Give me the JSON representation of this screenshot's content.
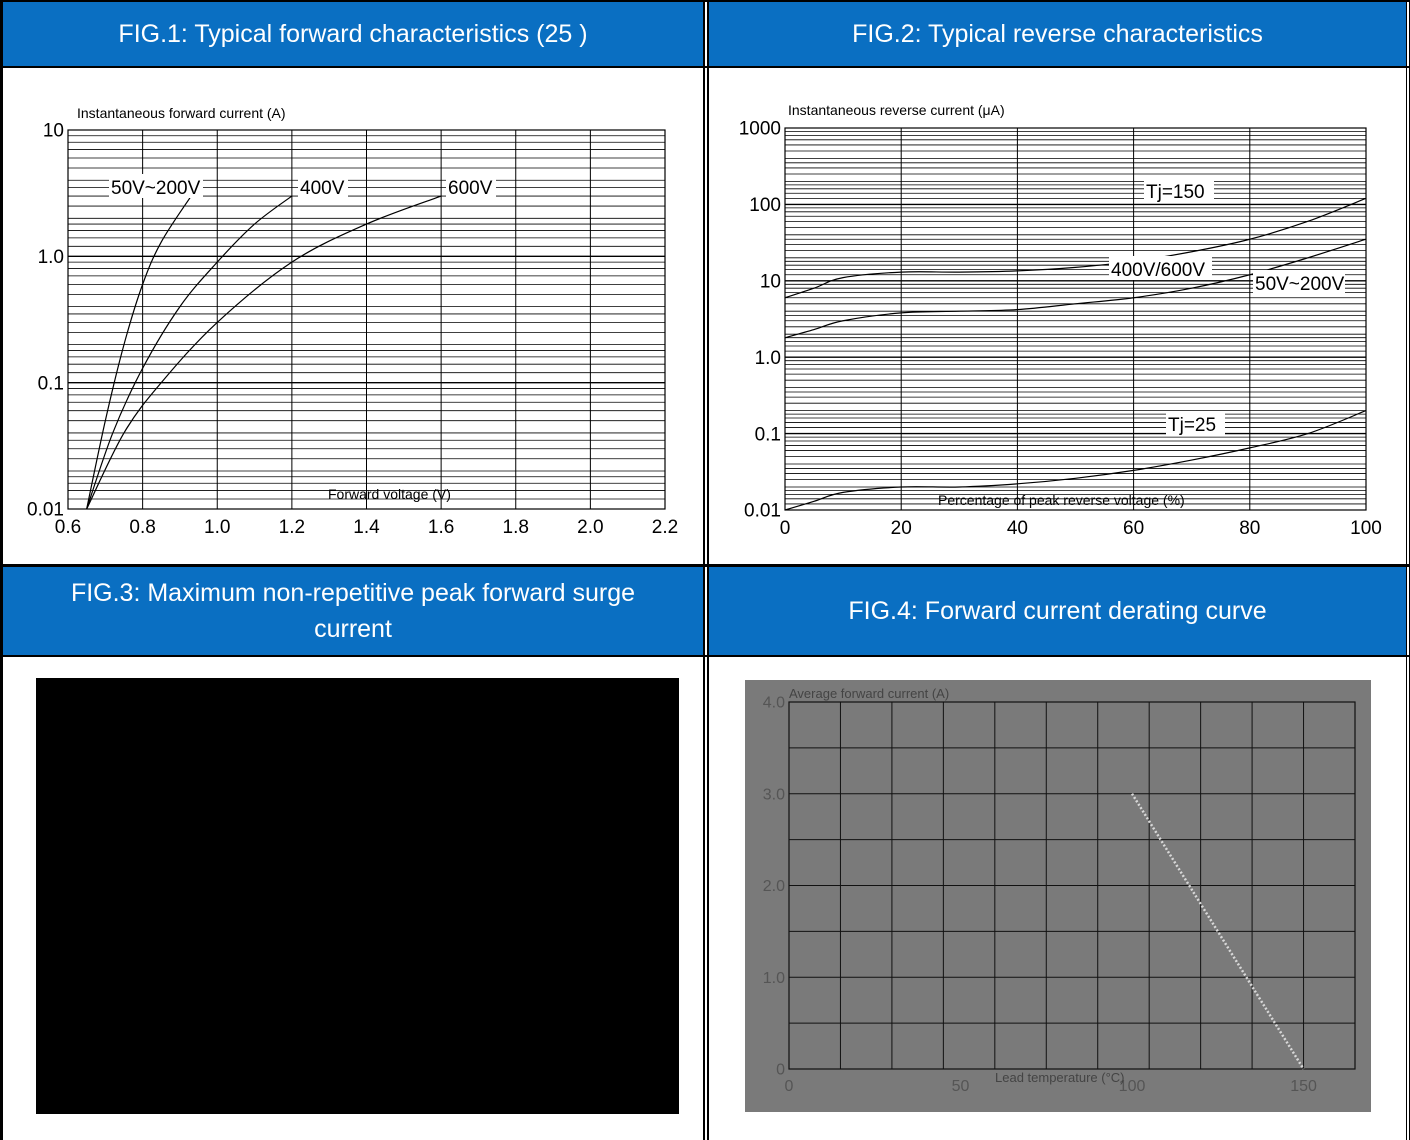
{
  "figures": [
    {
      "title": "FIG.1: Typical forward characteristics (25    )"
    },
    {
      "title": "FIG.2: Typical reverse characteristics"
    },
    {
      "title": "FIG.3: Maximum non-repetitive peak forward surge current"
    },
    {
      "title": "FIG.4: Forward current derating curve"
    }
  ],
  "chart_data": [
    {
      "id": "fig1",
      "type": "line",
      "title": "FIG.1: Typical forward characteristics (25    )",
      "xlabel": "Forward voltage (V)",
      "ylabel": "Instantaneous forward current (A)",
      "xlim": [
        0.6,
        2.2
      ],
      "ylim": [
        0.01,
        10
      ],
      "yscale": "log",
      "grid": true,
      "x_ticks": [
        "0.6",
        "0.8",
        "1.0",
        "1.2",
        "1.4",
        "1.6",
        "1.8",
        "2.0",
        "2.2"
      ],
      "y_ticks": [
        "0.01",
        "0.1",
        "1.0",
        "10"
      ],
      "series": [
        {
          "name": "50V~200V",
          "x": [
            0.65,
            0.7,
            0.75,
            0.8,
            0.85,
            0.93
          ],
          "y": [
            0.01,
            0.05,
            0.2,
            0.6,
            1.3,
            3.0
          ]
        },
        {
          "name": "400V",
          "x": [
            0.65,
            0.72,
            0.8,
            0.9,
            1.0,
            1.1,
            1.2
          ],
          "y": [
            0.01,
            0.04,
            0.13,
            0.4,
            0.9,
            1.8,
            3.0
          ]
        },
        {
          "name": "600V",
          "x": [
            0.65,
            0.75,
            0.85,
            1.0,
            1.2,
            1.4,
            1.6
          ],
          "y": [
            0.01,
            0.04,
            0.1,
            0.3,
            0.9,
            1.8,
            3.0
          ]
        }
      ]
    },
    {
      "id": "fig2",
      "type": "line",
      "title": "FIG.2: Typical reverse characteristics",
      "xlabel": "Percentage of peak reverse voltage (%)",
      "ylabel": "Instantaneous reverse current (μA)",
      "xlim": [
        0,
        100
      ],
      "ylim": [
        0.01,
        1000
      ],
      "yscale": "log",
      "grid": true,
      "x_ticks": [
        "0",
        "20",
        "40",
        "60",
        "80",
        "100"
      ],
      "y_ticks": [
        "0.01",
        "0.1",
        "1.0",
        "10",
        "100",
        "1000"
      ],
      "annotations": [
        "Tj=150",
        "400V/600V",
        "50V~200V",
        "Tj=25"
      ],
      "series": [
        {
          "name": "400V/600V",
          "x": [
            0,
            5,
            10,
            20,
            30,
            40,
            50,
            60,
            70,
            80,
            90,
            100
          ],
          "y": [
            6,
            8,
            11,
            13,
            13,
            13.5,
            15,
            18,
            24,
            35,
            60,
            120
          ]
        },
        {
          "name": "50V~200V",
          "x": [
            0,
            5,
            10,
            20,
            30,
            40,
            50,
            60,
            70,
            80,
            90,
            100
          ],
          "y": [
            1.8,
            2.3,
            3,
            3.8,
            4,
            4.2,
            5,
            6,
            8,
            12,
            20,
            35
          ]
        },
        {
          "name": "Tj=25",
          "x": [
            0,
            5,
            10,
            20,
            30,
            40,
            50,
            60,
            70,
            80,
            90,
            100
          ],
          "y": [
            0.01,
            0.013,
            0.017,
            0.02,
            0.02,
            0.022,
            0.026,
            0.033,
            0.045,
            0.065,
            0.1,
            0.2
          ]
        }
      ]
    },
    {
      "id": "fig3",
      "type": "line",
      "title": "FIG.3: Maximum non-repetitive peak forward surge current",
      "series": []
    },
    {
      "id": "fig4",
      "type": "line",
      "title": "FIG.4: Forward current derating curve",
      "xlabel": "Lead temperature (°C)",
      "ylabel": "Average forward current (A)",
      "xlim": [
        0,
        165
      ],
      "ylim": [
        0,
        4.0
      ],
      "grid": true,
      "x_ticks": [
        "0",
        "50",
        "100",
        "150"
      ],
      "y_ticks": [
        "0",
        "1.0",
        "2.0",
        "3.0",
        "4.0"
      ],
      "series": [
        {
          "name": "",
          "x": [
            100,
            150
          ],
          "y": [
            3.0,
            0
          ]
        }
      ]
    }
  ]
}
